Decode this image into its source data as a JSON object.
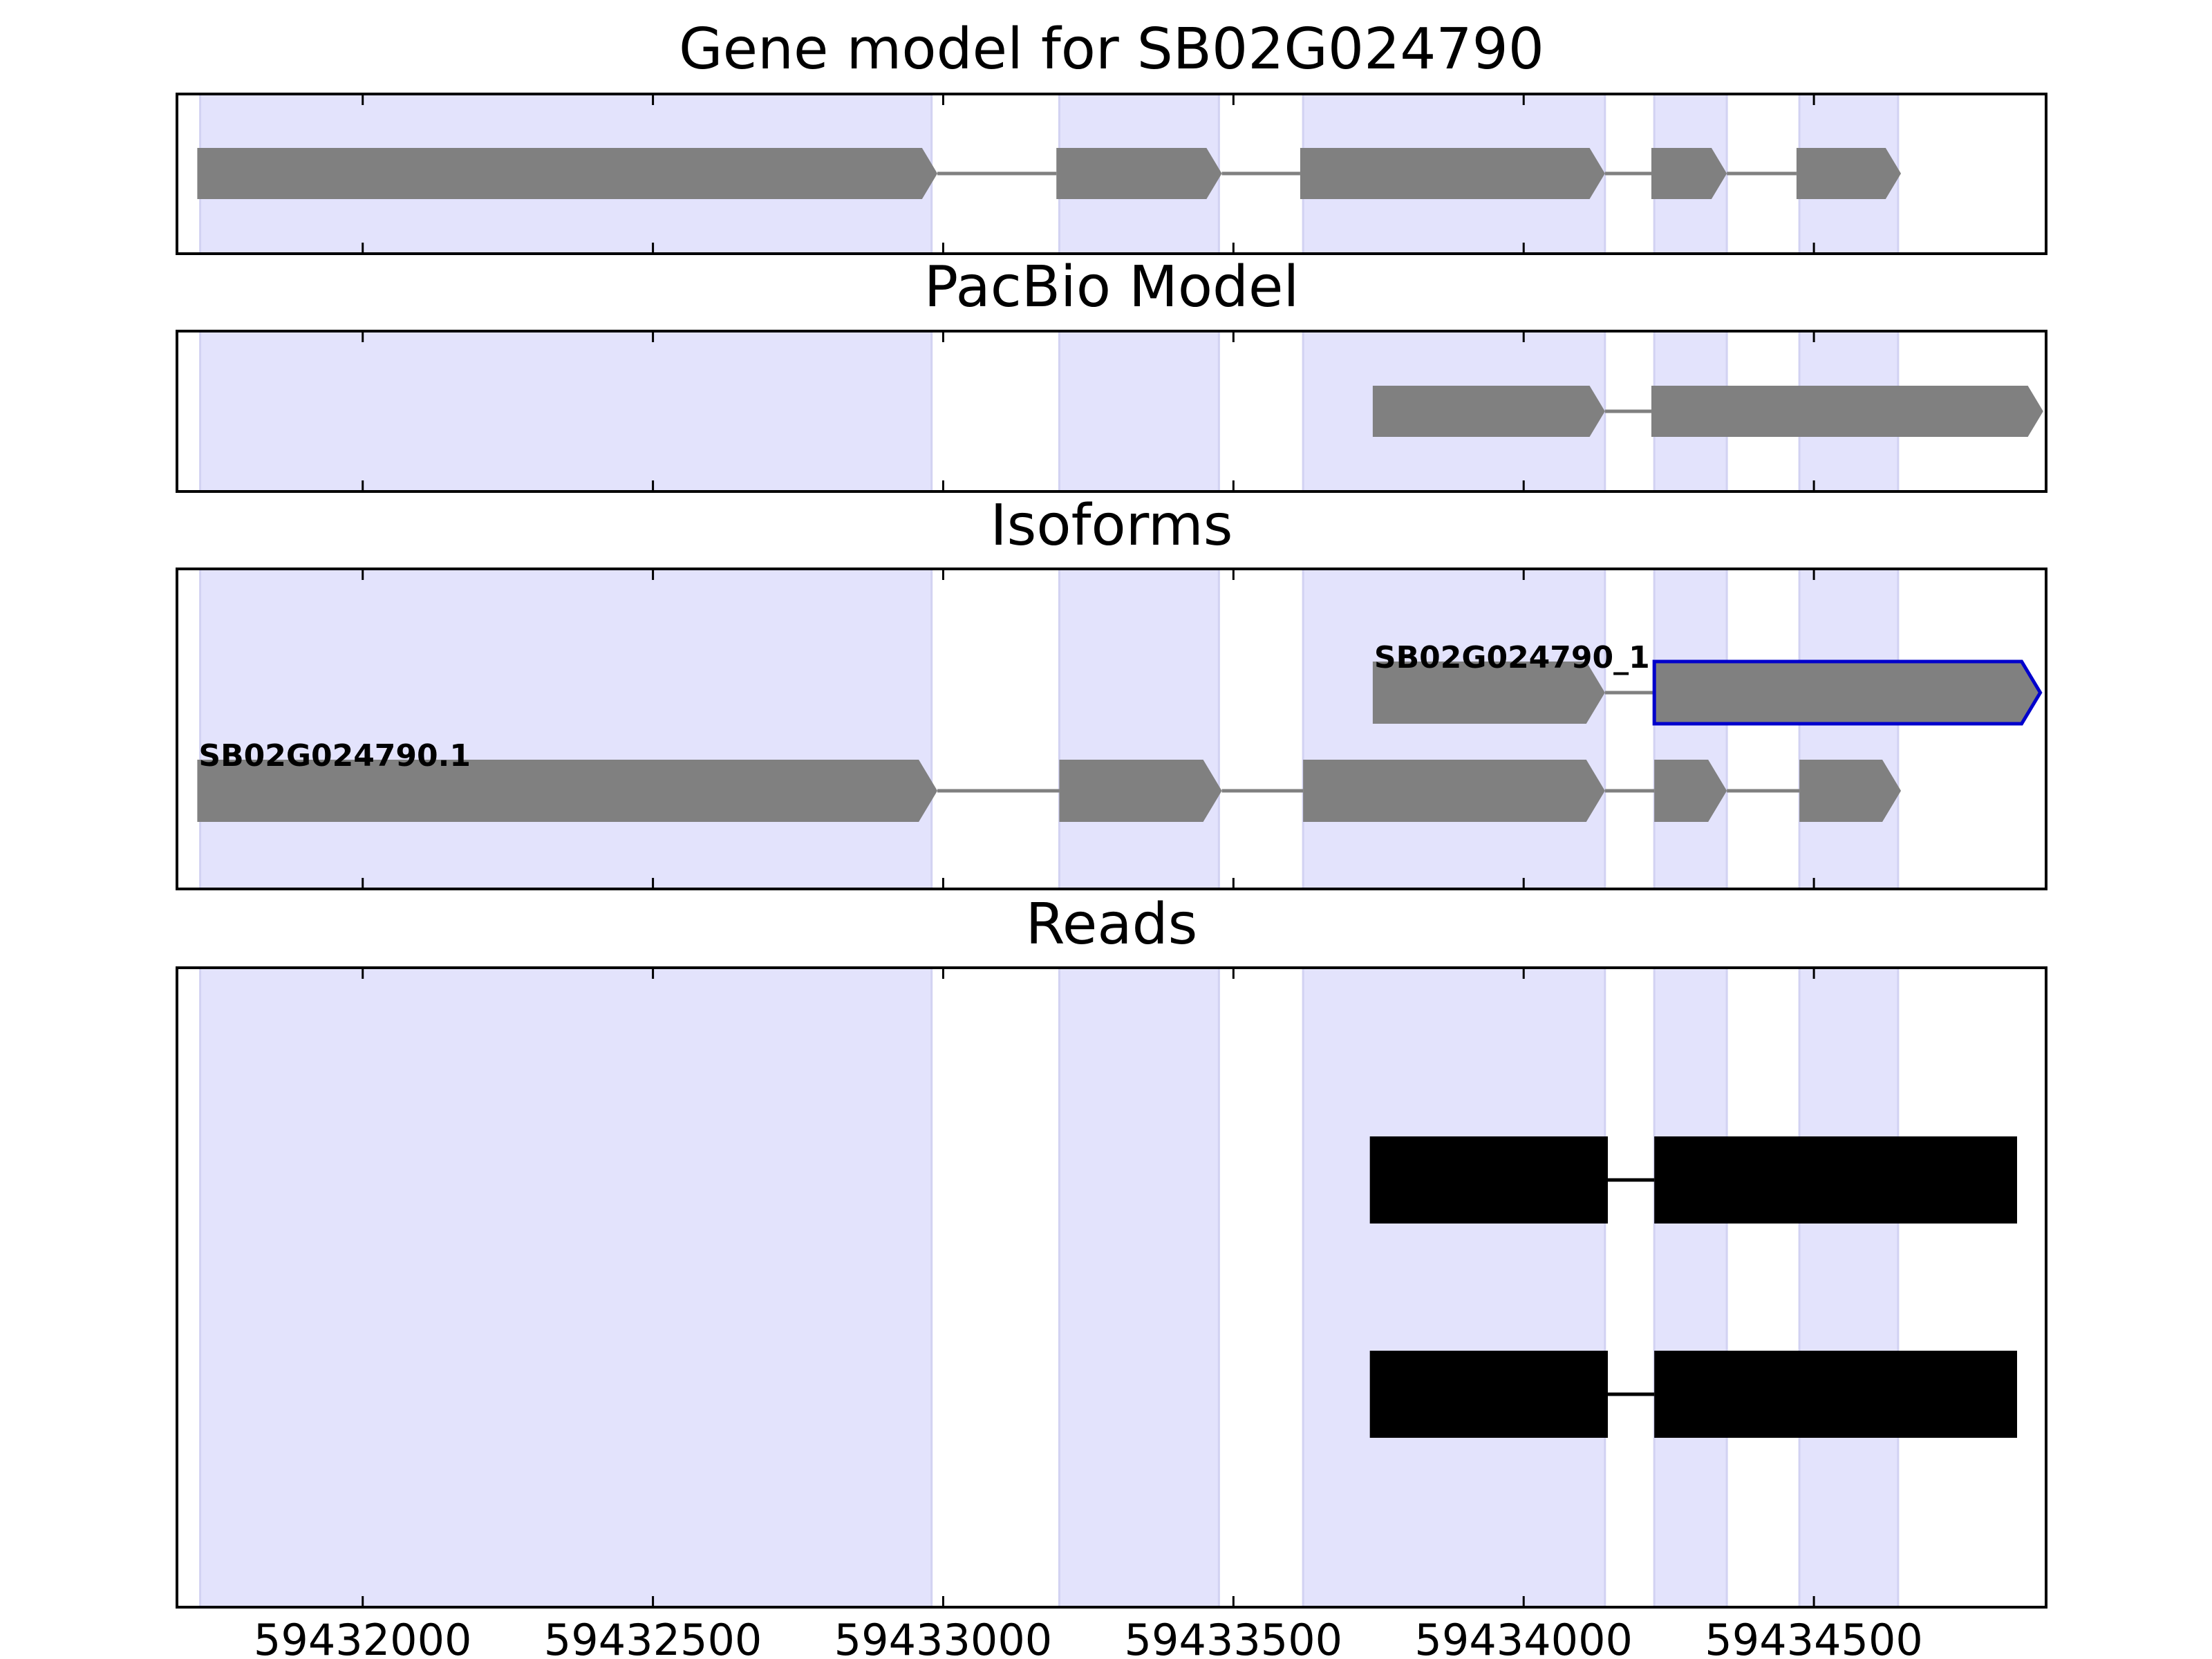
{
  "x_axis": {
    "range": [
      59431680,
      59434900
    ],
    "ticks": [
      59432000,
      59432500,
      59433000,
      59433500,
      59434000,
      59434500
    ],
    "tick_labels": [
      "59432000",
      "59432500",
      "59433000",
      "59433500",
      "59434000",
      "59434500"
    ]
  },
  "colors": {
    "shade": "#e3e3fc",
    "shade_edge": "#d2d2f2",
    "feature": "#808080",
    "selected_outline": "#0000cc",
    "read": "#000000"
  },
  "shaded_regions": [
    [
      59431720,
      59432980
    ],
    [
      59433200,
      59433475
    ],
    [
      59433620,
      59434140
    ],
    [
      59434225,
      59434350
    ],
    [
      59434475,
      59434645
    ]
  ],
  "panels": [
    {
      "id": "gene-model",
      "title": "Gene model for SB02G024790",
      "features": [
        {
          "label": "",
          "selected": false,
          "exons": [
            [
              59431715,
              59432990
            ],
            [
              59433195,
              59433480
            ],
            [
              59433615,
              59434140
            ],
            [
              59434220,
              59434350
            ],
            [
              59434470,
              59434650
            ]
          ]
        }
      ]
    },
    {
      "id": "pacbio-model",
      "title": "PacBio Model",
      "features": [
        {
          "label": "",
          "selected": false,
          "exons": [
            [
              59433740,
              59434140
            ],
            [
              59434220,
              59434895
            ]
          ]
        }
      ]
    },
    {
      "id": "isoforms",
      "title": "Isoforms",
      "features": [
        {
          "label": "SB02G024790_1",
          "selected": true,
          "exons": [
            [
              59433740,
              59434140
            ],
            [
              59434225,
              59434890
            ]
          ]
        },
        {
          "label": "SB02G024790.1",
          "selected": false,
          "exons": [
            [
              59431715,
              59432990
            ],
            [
              59433200,
              59433480
            ],
            [
              59433620,
              59434140
            ],
            [
              59434225,
              59434350
            ],
            [
              59434475,
              59434650
            ]
          ]
        }
      ]
    },
    {
      "id": "reads",
      "title": "Reads",
      "reads": [
        [
          [
            59433735,
            59434145
          ],
          [
            59434225,
            59434850
          ]
        ],
        [
          [
            59433735,
            59434145
          ],
          [
            59434225,
            59434850
          ]
        ]
      ]
    }
  ]
}
